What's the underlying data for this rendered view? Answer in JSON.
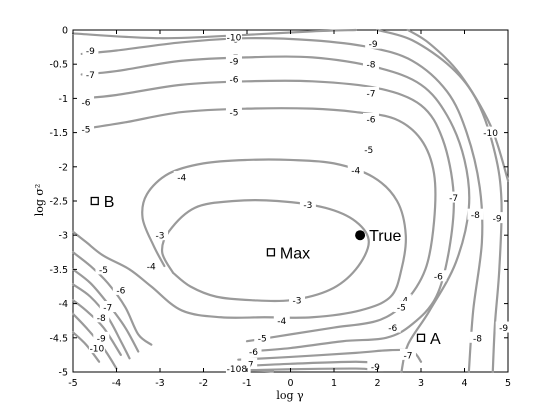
{
  "chart_data": {
    "type": "contour",
    "title": "",
    "xlabel": "log γ",
    "ylabel": "log σ²",
    "xlim": [
      -5,
      5
    ],
    "ylim": [
      -5,
      0
    ],
    "xticks": [
      "-5",
      "-4",
      "-3",
      "-2",
      "-1",
      "0",
      "1",
      "2",
      "3",
      "4",
      "5"
    ],
    "yticks": [
      "0",
      "-0.5",
      "-1",
      "-1.5",
      "-2",
      "-2.5",
      "-3",
      "-3.5",
      "-4",
      "-4.5",
      "-5"
    ],
    "grid": false,
    "contours": [
      {
        "level": "-3",
        "points": [
          [
            -2.7,
            -3.55
          ],
          [
            -2.95,
            -3.25
          ],
          [
            -2.8,
            -2.95
          ],
          [
            -2.2,
            -2.6
          ],
          [
            -1.3,
            -2.5
          ],
          [
            -0.3,
            -2.5
          ],
          [
            0.8,
            -2.6
          ],
          [
            1.5,
            -2.8
          ],
          [
            1.8,
            -3.1
          ],
          [
            1.5,
            -3.5
          ],
          [
            0.9,
            -3.8
          ],
          [
            0,
            -3.95
          ],
          [
            -0.9,
            -3.95
          ],
          [
            -1.7,
            -3.9
          ],
          [
            -2.3,
            -3.75
          ],
          [
            -2.7,
            -3.55
          ]
        ],
        "labels": [
          {
            "text": "-3",
            "at": [
              -3.0,
              -3.0
            ]
          },
          {
            "text": "-3",
            "at": [
              0.4,
              -2.55
            ]
          },
          {
            "text": "-3",
            "at": [
              0.15,
              -3.95
            ]
          }
        ]
      },
      {
        "level": "-4a",
        "points": [
          [
            -5,
            -2.95
          ],
          [
            -4.7,
            -3.1
          ],
          [
            -4.3,
            -3.3
          ],
          [
            -3.7,
            -3.5
          ],
          [
            -3.2,
            -3.75
          ],
          [
            -2.5,
            -4.1
          ],
          [
            -1.6,
            -4.2
          ],
          [
            -0.6,
            -4.2
          ],
          [
            0.5,
            -4.2
          ],
          [
            1.6,
            -4.1
          ],
          [
            2.3,
            -3.9
          ],
          [
            2.55,
            -3.5
          ],
          [
            2.65,
            -3.0
          ],
          [
            2.45,
            -2.5
          ],
          [
            1.9,
            -2.15
          ],
          [
            1.0,
            -1.95
          ],
          [
            0,
            -1.9
          ],
          [
            -1.0,
            -1.9
          ],
          [
            -2.0,
            -1.95
          ],
          [
            -2.8,
            -2.1
          ],
          [
            -3.3,
            -2.4
          ],
          [
            -3.4,
            -2.75
          ],
          [
            -3.15,
            -3.15
          ],
          [
            -2.9,
            -3.45
          ]
        ],
        "labels": [
          {
            "text": "-4",
            "at": [
              -2.5,
              -2.15
            ]
          },
          {
            "text": "-4",
            "at": [
              1.5,
              -2.05
            ]
          },
          {
            "text": "-4",
            "at": [
              -3.2,
              -3.45
            ]
          },
          {
            "text": "-4",
            "at": [
              2.6,
              -3.95
            ]
          },
          {
            "text": "-4",
            "at": [
              -0.2,
              -4.25
            ]
          }
        ]
      },
      {
        "level": "-5a",
        "points": [
          [
            -5,
            -3.25
          ],
          [
            -4.6,
            -3.45
          ],
          [
            -4.2,
            -3.7
          ],
          [
            -3.8,
            -4.05
          ],
          [
            -3.5,
            -4.45
          ],
          [
            -3.2,
            -4.6
          ]
        ],
        "labels": [
          {
            "text": "-5",
            "at": [
              -4.3,
              -3.5
            ]
          }
        ]
      },
      {
        "level": "-5b",
        "points": [
          [
            -1.0,
            -4.55
          ],
          [
            0,
            -4.45
          ],
          [
            1.0,
            -4.35
          ],
          [
            2.0,
            -4.25
          ],
          [
            2.6,
            -4.0
          ],
          [
            3.1,
            -3.5
          ],
          [
            3.3,
            -2.8
          ],
          [
            3.3,
            -2.1
          ],
          [
            3.0,
            -1.6
          ],
          [
            2.4,
            -1.3
          ],
          [
            1.5,
            -1.2
          ],
          [
            0.5,
            -1.15
          ],
          [
            -1.0,
            -1.15
          ],
          [
            -2.5,
            -1.2
          ],
          [
            -3.8,
            -1.35
          ],
          [
            -4.8,
            -1.45
          ]
        ],
        "labels": [
          {
            "text": "-5",
            "at": [
              -4.7,
              -1.45
            ]
          },
          {
            "text": "-5",
            "at": [
              -1.3,
              -1.2
            ]
          },
          {
            "text": "-5",
            "at": [
              1.8,
              -1.75
            ]
          },
          {
            "text": "-5",
            "at": [
              2.55,
              -4.05
            ]
          },
          {
            "text": "-5",
            "at": [
              -0.65,
              -4.5
            ]
          }
        ]
      },
      {
        "level": "-6a",
        "points": [
          [
            -5,
            -3.5
          ],
          [
            -4.6,
            -3.7
          ],
          [
            -4.2,
            -4.0
          ],
          [
            -3.8,
            -4.35
          ],
          [
            -3.5,
            -4.7
          ]
        ],
        "labels": [
          {
            "text": "-6",
            "at": [
              -3.9,
              -3.8
            ]
          }
        ]
      },
      {
        "level": "-6b",
        "points": [
          [
            -1.0,
            -4.7
          ],
          [
            0,
            -4.65
          ],
          [
            1.2,
            -4.55
          ],
          [
            2.2,
            -4.5
          ],
          [
            2.8,
            -4.3
          ],
          [
            3.35,
            -3.9
          ],
          [
            3.65,
            -3.2
          ],
          [
            3.75,
            -2.4
          ],
          [
            3.5,
            -1.6
          ],
          [
            3.0,
            -1.1
          ],
          [
            2.0,
            -0.85
          ],
          [
            0.5,
            -0.75
          ],
          [
            -1.0,
            -0.75
          ],
          [
            -2.5,
            -0.8
          ],
          [
            -4.0,
            -0.95
          ],
          [
            -4.8,
            -1.0
          ]
        ],
        "labels": [
          {
            "text": "-6",
            "at": [
              -4.7,
              -1.05
            ]
          },
          {
            "text": "-6",
            "at": [
              -1.3,
              -0.72
            ]
          },
          {
            "text": "-6",
            "at": [
              1.85,
              -1.3
            ]
          },
          {
            "text": "-6",
            "at": [
              3.4,
              -3.6
            ]
          },
          {
            "text": "-6",
            "at": [
              -0.85,
              -4.7
            ]
          },
          {
            "text": "-6",
            "at": [
              2.35,
              -4.35
            ]
          }
        ]
      },
      {
        "level": "-7a",
        "points": [
          [
            -5,
            -3.72
          ],
          [
            -4.6,
            -3.9
          ],
          [
            -4.2,
            -4.2
          ],
          [
            -3.9,
            -4.55
          ],
          [
            -3.7,
            -4.8
          ]
        ],
        "labels": [
          {
            "text": "-7",
            "at": [
              -4.2,
              -4.05
            ]
          }
        ]
      },
      {
        "level": "-7b",
        "points": [
          [
            -1.2,
            -4.82
          ],
          [
            0,
            -4.78
          ],
          [
            1.5,
            -4.72
          ],
          [
            2.3,
            -4.68
          ],
          [
            2.8,
            -4.7
          ],
          [
            3.0,
            -4.85
          ]
        ],
        "labels": [
          {
            "text": "-7",
            "at": [
              -0.95,
              -4.88
            ]
          }
        ]
      },
      {
        "level": "-7c",
        "points": [
          [
            2.55,
            -5.0
          ],
          [
            2.7,
            -4.6
          ],
          [
            3.2,
            -4.1
          ],
          [
            3.8,
            -3.4
          ],
          [
            4.1,
            -2.6
          ],
          [
            4.0,
            -1.9
          ],
          [
            3.6,
            -1.25
          ],
          [
            3.0,
            -0.8
          ],
          [
            2.0,
            -0.55
          ],
          [
            0.5,
            -0.4
          ],
          [
            -1.0,
            -0.4
          ],
          [
            -2.5,
            -0.45
          ],
          [
            -4.0,
            -0.6
          ],
          [
            -4.8,
            -0.65
          ]
        ],
        "labels": [
          {
            "text": "-7",
            "at": [
              -4.6,
              -0.65
            ]
          },
          {
            "text": "-7",
            "at": [
              -1.3,
              -0.4
            ]
          },
          {
            "text": "-7",
            "at": [
              1.85,
              -0.92
            ]
          },
          {
            "text": "-7",
            "at": [
              3.75,
              -2.45
            ]
          },
          {
            "text": "-7",
            "at": [
              2.7,
              -4.75
            ]
          }
        ]
      },
      {
        "level": "-8a",
        "points": [
          [
            -5,
            -3.95
          ],
          [
            -4.7,
            -4.1
          ],
          [
            -4.3,
            -4.35
          ],
          [
            -3.9,
            -4.75
          ]
        ],
        "labels": [
          {
            "text": "-8",
            "at": [
              -4.35,
              -4.2
            ]
          }
        ]
      },
      {
        "level": "-8b",
        "points": [
          [
            -1.3,
            -4.92
          ],
          [
            0,
            -4.88
          ],
          [
            1.5,
            -4.85
          ],
          [
            2.1,
            -4.88
          ]
        ],
        "labels": [
          {
            "text": "-8",
            "at": [
              -1.1,
              -4.95
            ]
          }
        ]
      },
      {
        "level": "-8c",
        "points": [
          [
            4.1,
            -5.0
          ],
          [
            4.2,
            -4.1
          ],
          [
            4.4,
            -3.1
          ],
          [
            4.35,
            -2.3
          ],
          [
            4.05,
            -1.5
          ],
          [
            3.6,
            -0.9
          ],
          [
            2.8,
            -0.45
          ],
          [
            1.8,
            -0.25
          ],
          [
            0.5,
            -0.15
          ],
          [
            -1.0,
            -0.12
          ],
          [
            -2.5,
            -0.18
          ],
          [
            -4.0,
            -0.3
          ],
          [
            -4.8,
            -0.35
          ]
        ],
        "labels": [
          {
            "text": "-8",
            "at": [
              -1.3,
              -0.13
            ]
          },
          {
            "text": "-8",
            "at": [
              1.85,
              -0.5
            ]
          },
          {
            "text": "-8",
            "at": [
              4.25,
              -2.7
            ]
          },
          {
            "text": "-8",
            "at": [
              4.3,
              -4.5
            ]
          }
        ]
      },
      {
        "level": "-9a",
        "points": [
          [
            -5,
            -4.15
          ],
          [
            -4.7,
            -4.35
          ],
          [
            -4.3,
            -4.65
          ],
          [
            -4.0,
            -4.95
          ]
        ],
        "labels": [
          {
            "text": "-9",
            "at": [
              -4.35,
              -4.5
            ]
          }
        ]
      },
      {
        "level": "-9b",
        "points": [
          [
            -1.4,
            -4.98
          ],
          [
            0,
            -4.96
          ],
          [
            1.5,
            -4.95
          ],
          [
            1.9,
            -4.97
          ]
        ],
        "labels": [
          {
            "text": "-9",
            "at": [
              1.95,
              -4.92
            ]
          }
        ]
      },
      {
        "level": "-9c",
        "points": [
          [
            4.65,
            -5.0
          ],
          [
            4.7,
            -4.3
          ],
          [
            4.8,
            -3.5
          ],
          [
            4.85,
            -2.5
          ],
          [
            4.7,
            -1.8
          ],
          [
            4.3,
            -1.05
          ],
          [
            3.7,
            -0.55
          ],
          [
            2.8,
            -0.15
          ],
          [
            2.0,
            0
          ]
        ],
        "labels": [
          {
            "text": "-9",
            "at": [
              -4.6,
              -0.3
            ]
          },
          {
            "text": "-9",
            "at": [
              -1.3,
              -0.45
            ]
          },
          {
            "text": "-9",
            "at": [
              1.9,
              -0.2
            ]
          },
          {
            "text": "-9",
            "at": [
              4.75,
              -2.75
            ]
          },
          {
            "text": "-9",
            "at": [
              4.9,
              -4.35
            ]
          }
        ]
      },
      {
        "level": "-10a",
        "points": [
          [
            -5,
            -4.42
          ],
          [
            -4.7,
            -4.6
          ],
          [
            -4.4,
            -4.85
          ]
        ],
        "labels": [
          {
            "text": "-10",
            "at": [
              -4.45,
              -4.65
            ]
          }
        ]
      },
      {
        "level": "-10b",
        "points": [
          [
            -1.4,
            -5.0
          ],
          [
            -0.9,
            -4.98
          ],
          [
            -0.4,
            -4.99
          ]
        ],
        "labels": [
          {
            "text": "-10",
            "at": [
              -1.3,
              -4.95
            ]
          }
        ]
      },
      {
        "level": "-10c",
        "points": [
          [
            5.0,
            -2.2
          ],
          [
            4.6,
            -1.4
          ],
          [
            3.9,
            -0.65
          ],
          [
            3.2,
            -0.2
          ],
          [
            2.7,
            0
          ]
        ],
        "labels": [
          {
            "text": "-10",
            "at": [
              -1.3,
              -0.1
            ]
          },
          {
            "text": "-10",
            "at": [
              4.6,
              -1.5
            ]
          }
        ]
      },
      {
        "level": "-10d",
        "points": [
          [
            -5.0,
            -0.05
          ],
          [
            -3.0,
            -0.12
          ],
          [
            -1.0,
            -0.07
          ],
          [
            0.5,
            -0.02
          ],
          [
            1.5,
            0
          ]
        ],
        "labels": []
      }
    ],
    "points": [
      {
        "label": "B",
        "x": -4.5,
        "y": -2.5,
        "marker": "open-square"
      },
      {
        "label": "Max",
        "x": -0.45,
        "y": -3.25,
        "marker": "open-square"
      },
      {
        "label": "True",
        "x": 1.6,
        "y": -3.0,
        "marker": "filled-circle"
      },
      {
        "label": "A",
        "x": 3.0,
        "y": -4.5,
        "marker": "open-square"
      }
    ]
  }
}
